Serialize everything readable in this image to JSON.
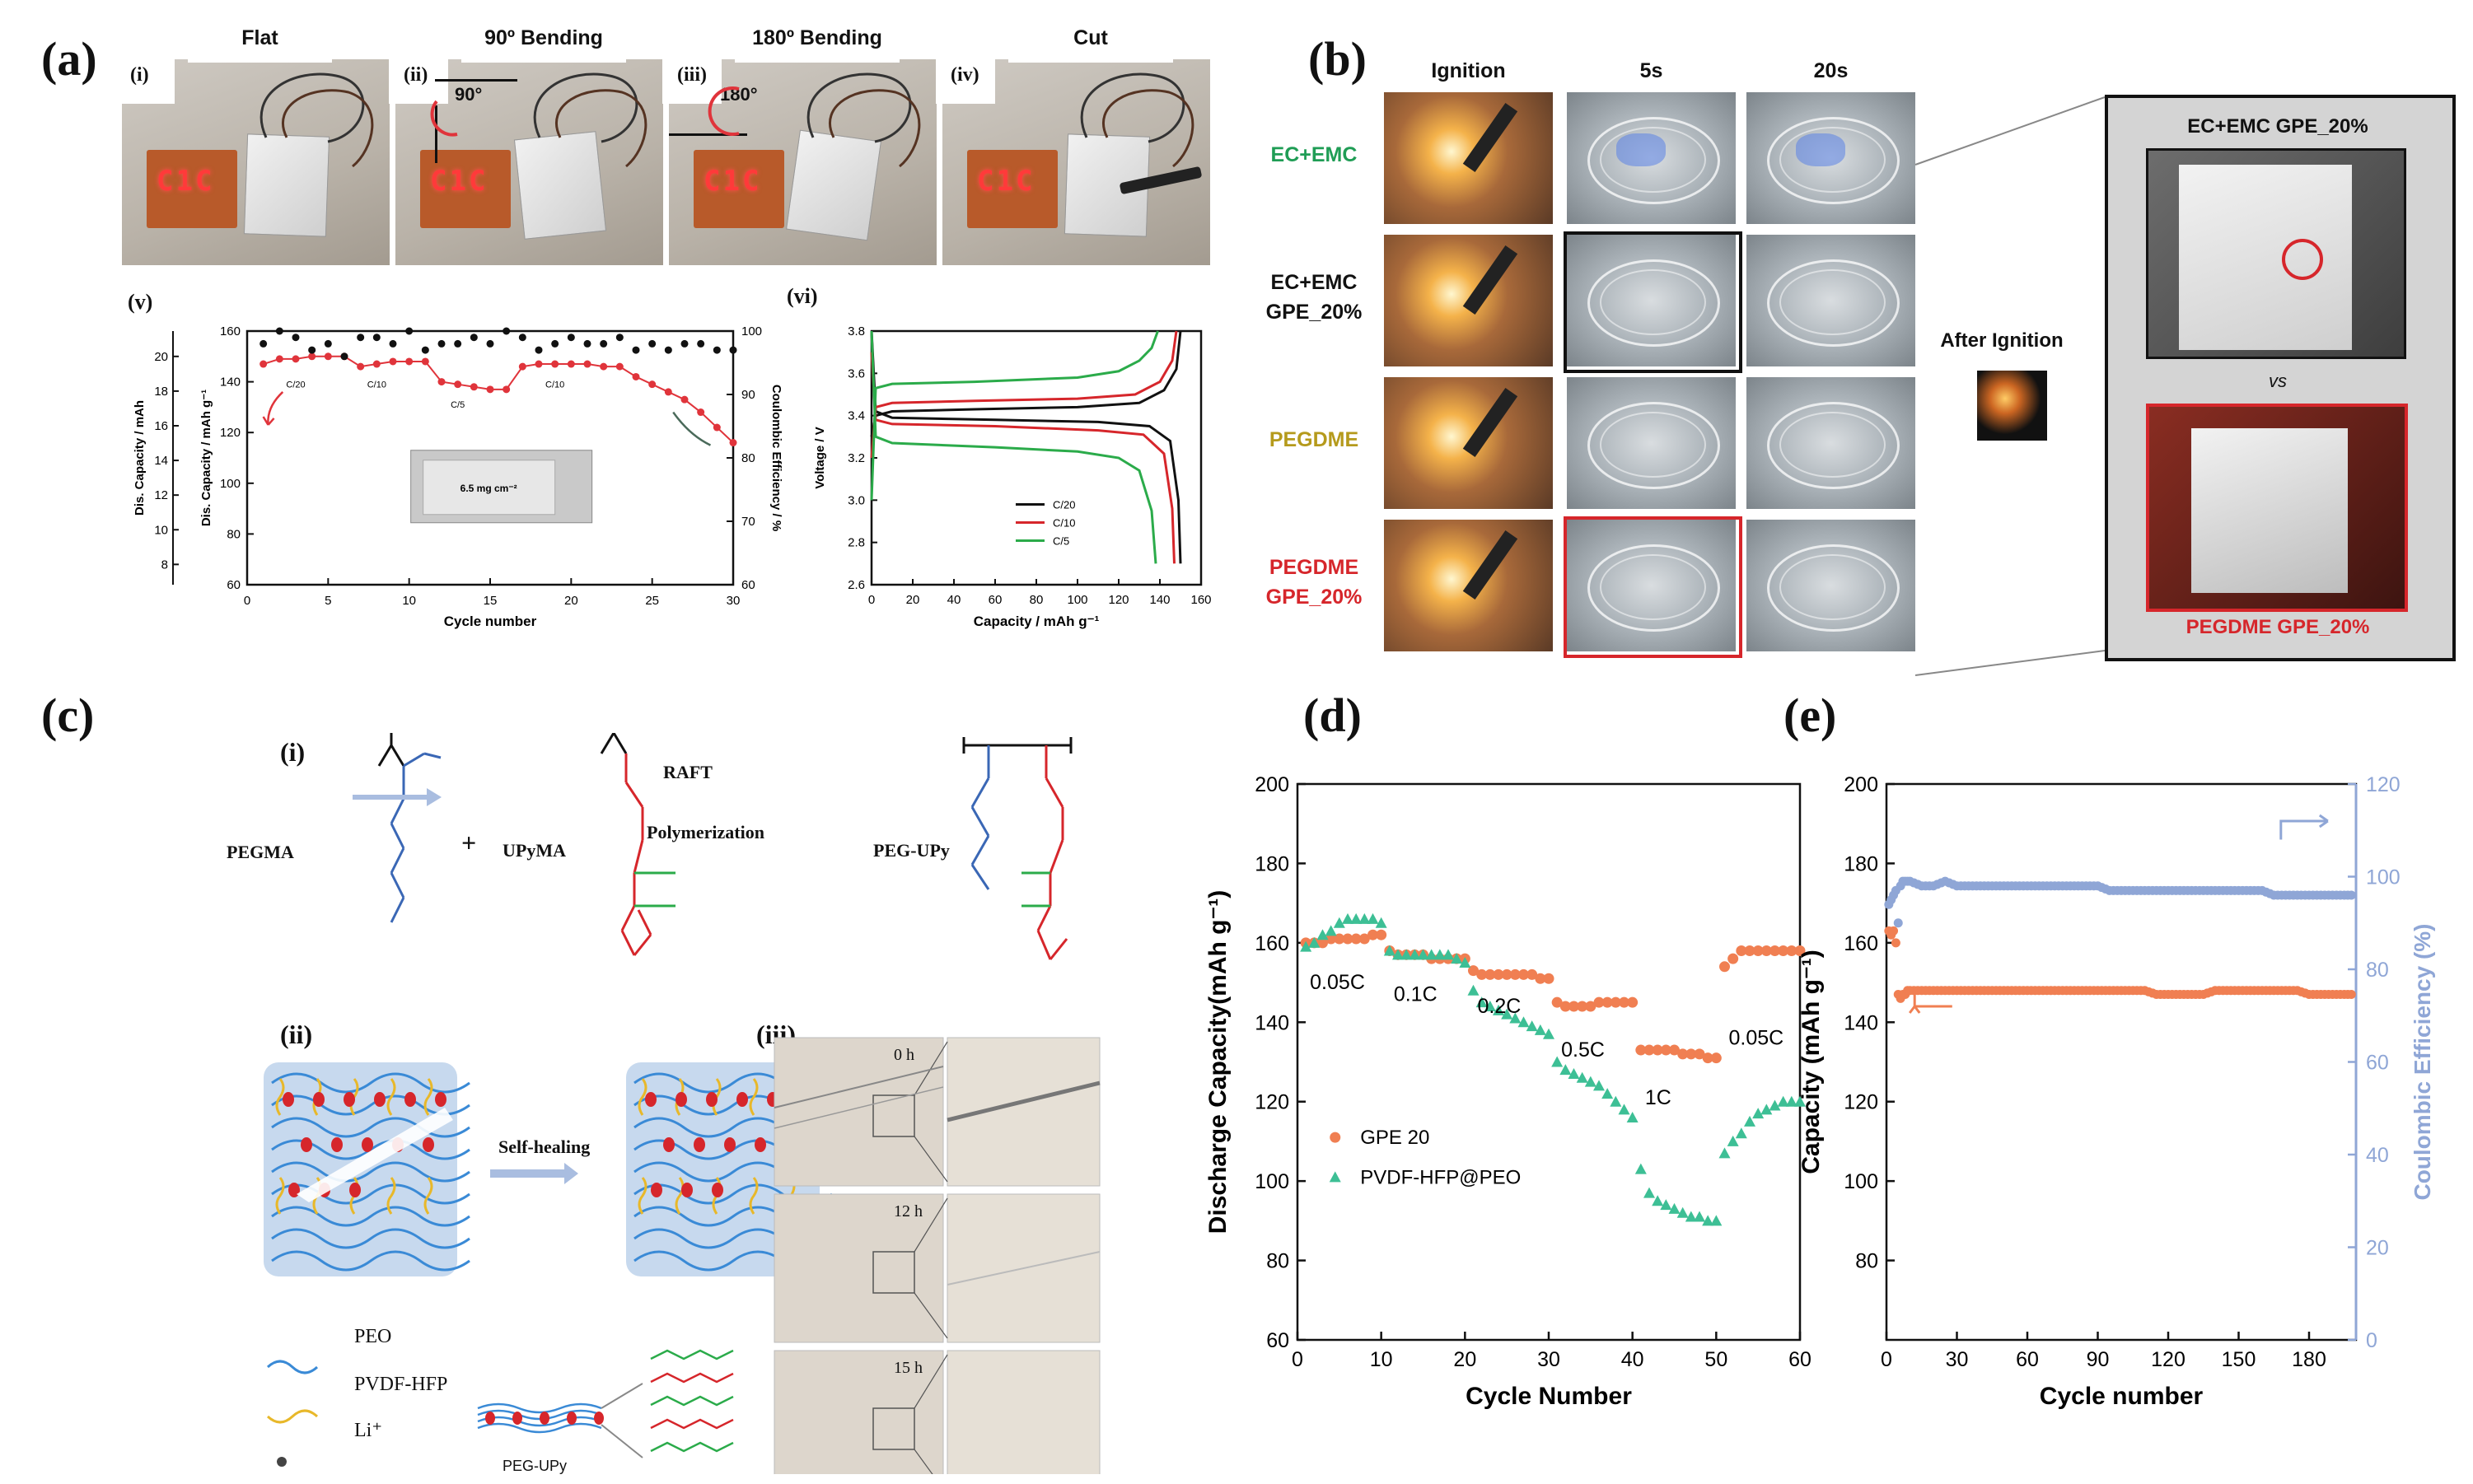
{
  "panels": {
    "a": "(a)",
    "b": "(b)",
    "c": "(c)",
    "d": "(d)",
    "e": "(e)"
  },
  "a": {
    "photo_titles": [
      "Flat",
      "90º Bending",
      "180º Bending",
      "Cut"
    ],
    "photo_tags": [
      "(i)",
      "(ii)",
      "(iii)",
      "(iv)"
    ],
    "angle_labels": [
      "90°",
      "180°"
    ],
    "display_text": "C1C",
    "sub_v": "(v)",
    "sub_vi": "(vi)",
    "pouch_label": "6.5 mg cm⁻²"
  },
  "b": {
    "col_headers": [
      "Ignition",
      "5s",
      "20s"
    ],
    "rows": [
      {
        "label": "EC+EMC",
        "color": "#1f9d55"
      },
      {
        "label": "EC+EMC\nGPE_20%",
        "color": "#111111"
      },
      {
        "label": "PEGDME",
        "color": "#b59a1c"
      },
      {
        "label": "PEGDME\nGPE_20%",
        "color": "#d6262b"
      }
    ],
    "after_ignition": "After Ignition",
    "inset_top_label": "EC+EMC GPE_20%",
    "inset_vs": "vs",
    "inset_bottom_label": "PEGDME GPE_20%"
  },
  "c": {
    "sub_i": "(i)",
    "sub_ii": "(ii)",
    "sub_iii": "(iii)",
    "pegma": "PEGMA",
    "plus": "+",
    "upyma": "UPyMA",
    "raft": "RAFT",
    "polymerization": "Polymerization",
    "peg_upy": "PEG-UPy",
    "self_healing": "Self-healing",
    "legend": [
      "PEO",
      "PVDF-HFP",
      "Li⁺"
    ],
    "peg_upy_small": "PEG-UPy",
    "time_labels": [
      "0 h",
      "12 h",
      "15 h"
    ]
  },
  "colors": {
    "orange": "#f07f52",
    "teal": "#3dbf95",
    "blue_ce": "#8fa6d6",
    "red_a": "#e0343b",
    "green_a": "#2bab4a",
    "black": "#111111",
    "chem_blue": "#3a67b5",
    "chem_red": "#d6262b",
    "chem_green": "#2bab4a",
    "ptfe_yellow": "#e8b82a",
    "peo_blue": "#3a8ad6"
  },
  "chart_data": [
    {
      "id": "a_v",
      "type": "scatter",
      "title": "",
      "xlabel": "Cycle number",
      "ylabel": "Dis. Capacity / mAh g⁻¹",
      "ylabel_outer": "Dis. Capacity / mAh",
      "y2label": "Coulombic Efficiency / %",
      "xlim": [
        0,
        30
      ],
      "ylim": [
        60,
        160
      ],
      "y2lim": [
        60,
        100
      ],
      "y_outer_lim": [
        8,
        20
      ],
      "x_ticks": [
        0,
        5,
        10,
        15,
        20,
        25,
        30
      ],
      "y_ticks": [
        60,
        80,
        100,
        120,
        140,
        160
      ],
      "y_outer_ticks": [
        8,
        10,
        12,
        14,
        16,
        18,
        20
      ],
      "y2_ticks": [
        60,
        70,
        80,
        90,
        100
      ],
      "rate_labels": [
        "C/20",
        "C/10",
        "C/5",
        "C/10"
      ],
      "series": [
        {
          "name": "",
          "axis": "left",
          "x": [
            1,
            2,
            3,
            4,
            5,
            6,
            7,
            8,
            9,
            10,
            11,
            12,
            13,
            14,
            15,
            16,
            17,
            18,
            19,
            20,
            21,
            22,
            23,
            24,
            25,
            26,
            27,
            28,
            29,
            30
          ],
          "values": [
            147,
            149,
            149,
            150,
            150,
            150,
            146,
            147,
            148,
            148,
            148,
            140,
            139,
            138,
            137,
            137,
            146,
            147,
            147,
            147,
            147,
            146,
            146,
            142,
            139,
            136,
            133,
            128,
            122,
            116
          ]
        },
        {
          "name": "",
          "axis": "right",
          "x": [
            1,
            2,
            3,
            4,
            5,
            6,
            7,
            8,
            9,
            10,
            11,
            12,
            13,
            14,
            15,
            16,
            17,
            18,
            19,
            20,
            21,
            22,
            23,
            24,
            25,
            26,
            27,
            28,
            29,
            30
          ],
          "values": [
            98,
            100,
            99,
            97,
            98,
            96,
            99,
            99,
            98,
            100,
            97,
            98,
            98,
            99,
            98,
            100,
            99,
            97,
            98,
            99,
            98,
            98,
            99,
            97,
            98,
            97,
            98,
            98,
            97,
            97
          ]
        }
      ]
    },
    {
      "id": "a_vi",
      "type": "line",
      "title": "",
      "xlabel": "Capacity / mAh g⁻¹",
      "ylabel": "Voltage / V",
      "xlim": [
        0,
        160
      ],
      "ylim": [
        2.6,
        3.8
      ],
      "x_ticks": [
        0,
        20,
        40,
        60,
        80,
        100,
        120,
        140,
        160
      ],
      "y_ticks": [
        2.6,
        2.8,
        3.0,
        3.2,
        3.4,
        3.6,
        3.8
      ],
      "legend_position": "center-right",
      "series": [
        {
          "name": "C/20",
          "color": "#111111",
          "charge": [
            [
              0,
              3.3
            ],
            [
              2,
              3.4
            ],
            [
              10,
              3.42
            ],
            [
              50,
              3.43
            ],
            [
              100,
              3.44
            ],
            [
              130,
              3.46
            ],
            [
              142,
              3.52
            ],
            [
              148,
              3.62
            ],
            [
              150,
              3.8
            ]
          ],
          "discharge": [
            [
              0,
              3.8
            ],
            [
              2,
              3.42
            ],
            [
              10,
              3.39
            ],
            [
              60,
              3.38
            ],
            [
              110,
              3.37
            ],
            [
              135,
              3.35
            ],
            [
              145,
              3.28
            ],
            [
              149,
              3.0
            ],
            [
              150,
              2.7
            ]
          ]
        },
        {
          "name": "C/10",
          "color": "#d6262b",
          "charge": [
            [
              0,
              3.2
            ],
            [
              2,
              3.44
            ],
            [
              10,
              3.46
            ],
            [
              50,
              3.47
            ],
            [
              100,
              3.48
            ],
            [
              128,
              3.5
            ],
            [
              140,
              3.56
            ],
            [
              146,
              3.66
            ],
            [
              148,
              3.8
            ]
          ],
          "discharge": [
            [
              0,
              3.7
            ],
            [
              2,
              3.38
            ],
            [
              10,
              3.36
            ],
            [
              60,
              3.35
            ],
            [
              110,
              3.33
            ],
            [
              132,
              3.31
            ],
            [
              142,
              3.22
            ],
            [
              146,
              2.96
            ],
            [
              147,
              2.7
            ]
          ]
        },
        {
          "name": "C/5",
          "color": "#2bab4a",
          "charge": [
            [
              0,
              3.0
            ],
            [
              2,
              3.53
            ],
            [
              10,
              3.55
            ],
            [
              50,
              3.56
            ],
            [
              100,
              3.58
            ],
            [
              120,
              3.61
            ],
            [
              130,
              3.66
            ],
            [
              136,
              3.72
            ],
            [
              139,
              3.8
            ]
          ],
          "discharge": [
            [
              0,
              3.8
            ],
            [
              2,
              3.3
            ],
            [
              10,
              3.27
            ],
            [
              60,
              3.25
            ],
            [
              100,
              3.23
            ],
            [
              120,
              3.2
            ],
            [
              130,
              3.14
            ],
            [
              136,
              2.95
            ],
            [
              138,
              2.7
            ]
          ]
        }
      ]
    },
    {
      "id": "d",
      "type": "scatter",
      "title": "",
      "xlabel": "Cycle Number",
      "ylabel": "Discharge Capacity(mAh g⁻¹)",
      "xlim": [
        0,
        60
      ],
      "ylim": [
        60,
        200
      ],
      "x_ticks": [
        0,
        10,
        20,
        30,
        40,
        50,
        60
      ],
      "y_ticks": [
        60,
        80,
        100,
        120,
        140,
        160,
        180,
        200
      ],
      "legend_position": "lower-left",
      "rate_labels": [
        "0.05C",
        "0.1C",
        "0.2C",
        "0.5C",
        "1C",
        "0.05C"
      ],
      "series": [
        {
          "name": "GPE 20",
          "color": "#f07f52",
          "x": [
            1,
            2,
            3,
            4,
            5,
            6,
            7,
            8,
            9,
            10,
            11,
            12,
            13,
            14,
            15,
            16,
            17,
            18,
            19,
            20,
            21,
            22,
            23,
            24,
            25,
            26,
            27,
            28,
            29,
            30,
            31,
            32,
            33,
            34,
            35,
            36,
            37,
            38,
            39,
            40,
            41,
            42,
            43,
            44,
            45,
            46,
            47,
            48,
            49,
            50,
            51,
            52,
            53,
            54,
            55,
            56,
            57,
            58,
            59,
            60
          ],
          "values": [
            160,
            160,
            160,
            161,
            161,
            161,
            161,
            161,
            162,
            162,
            158,
            157,
            157,
            157,
            157,
            156,
            156,
            156,
            156,
            156,
            153,
            152,
            152,
            152,
            152,
            152,
            152,
            152,
            151,
            151,
            145,
            144,
            144,
            144,
            144,
            145,
            145,
            145,
            145,
            145,
            133,
            133,
            133,
            133,
            133,
            132,
            132,
            132,
            131,
            131,
            154,
            156,
            158,
            158,
            158,
            158,
            158,
            158,
            158,
            158
          ]
        },
        {
          "name": "PVDF-HFP@PEO",
          "color": "#3dbf95",
          "x": [
            1,
            2,
            3,
            4,
            5,
            6,
            7,
            8,
            9,
            10,
            11,
            12,
            13,
            14,
            15,
            16,
            17,
            18,
            19,
            20,
            21,
            22,
            23,
            24,
            25,
            26,
            27,
            28,
            29,
            30,
            31,
            32,
            33,
            34,
            35,
            36,
            37,
            38,
            39,
            40,
            41,
            42,
            43,
            44,
            45,
            46,
            47,
            48,
            49,
            50,
            51,
            52,
            53,
            54,
            55,
            56,
            57,
            58,
            59,
            60
          ],
          "values": [
            159,
            160,
            162,
            163,
            165,
            166,
            166,
            166,
            166,
            165,
            158,
            157,
            157,
            157,
            157,
            157,
            157,
            157,
            156,
            155,
            148,
            145,
            144,
            143,
            142,
            141,
            140,
            139,
            138,
            137,
            130,
            128,
            127,
            126,
            125,
            124,
            122,
            120,
            118,
            116,
            103,
            97,
            95,
            94,
            93,
            92,
            91,
            91,
            90,
            90,
            107,
            110,
            112,
            115,
            117,
            118,
            119,
            120,
            120,
            120
          ]
        }
      ]
    },
    {
      "id": "e",
      "type": "scatter",
      "title": "",
      "xlabel": "Cycle number",
      "ylabel": "Capacity (mAh g⁻¹)",
      "y2label": "Coulombic Efficiency (%)",
      "xlim": [
        0,
        200
      ],
      "ylim": [
        60,
        200
      ],
      "y2lim": [
        0,
        120
      ],
      "x_ticks": [
        0,
        30,
        60,
        90,
        120,
        150,
        180
      ],
      "y_ticks": [
        80,
        100,
        120,
        140,
        160,
        180,
        200
      ],
      "y2_ticks": [
        0,
        20,
        40,
        60,
        80,
        100,
        120
      ],
      "series": [
        {
          "name": "",
          "axis": "left",
          "color": "#f07f52",
          "x": [
            1,
            2,
            3,
            4,
            5,
            6,
            7,
            8,
            9,
            10,
            15,
            20,
            25,
            30,
            35,
            40,
            45,
            50,
            55,
            60,
            65,
            70,
            75,
            80,
            85,
            90,
            95,
            100,
            105,
            110,
            115,
            120,
            125,
            130,
            135,
            140,
            145,
            150,
            155,
            160,
            165,
            170,
            175,
            180,
            185,
            190,
            195,
            198
          ],
          "values": [
            163,
            162,
            163,
            160,
            147,
            146,
            147,
            147,
            148,
            148,
            148,
            148,
            148,
            148,
            148,
            148,
            148,
            148,
            148,
            148,
            148,
            148,
            148,
            148,
            148,
            148,
            148,
            148,
            148,
            148,
            147,
            147,
            147,
            147,
            147,
            148,
            148,
            148,
            148,
            148,
            148,
            148,
            148,
            147,
            147,
            147,
            147,
            147
          ]
        },
        {
          "name": "",
          "axis": "right",
          "color": "#8fa6d6",
          "x": [
            1,
            2,
            3,
            4,
            5,
            6,
            7,
            8,
            9,
            10,
            15,
            20,
            25,
            30,
            35,
            40,
            45,
            50,
            55,
            60,
            65,
            70,
            75,
            80,
            85,
            90,
            95,
            100,
            105,
            110,
            115,
            120,
            125,
            130,
            135,
            140,
            145,
            150,
            155,
            160,
            165,
            170,
            175,
            180,
            185,
            190,
            195,
            198
          ],
          "values": [
            94,
            95,
            96,
            97,
            90,
            98,
            99,
            99,
            99,
            99,
            98,
            98,
            99,
            98,
            98,
            98,
            98,
            98,
            98,
            98,
            98,
            98,
            98,
            98,
            98,
            98,
            97,
            97,
            97,
            97,
            97,
            97,
            97,
            97,
            97,
            97,
            97,
            97,
            97,
            97,
            96,
            96,
            96,
            96,
            96,
            96,
            96,
            96
          ]
        }
      ]
    }
  ]
}
